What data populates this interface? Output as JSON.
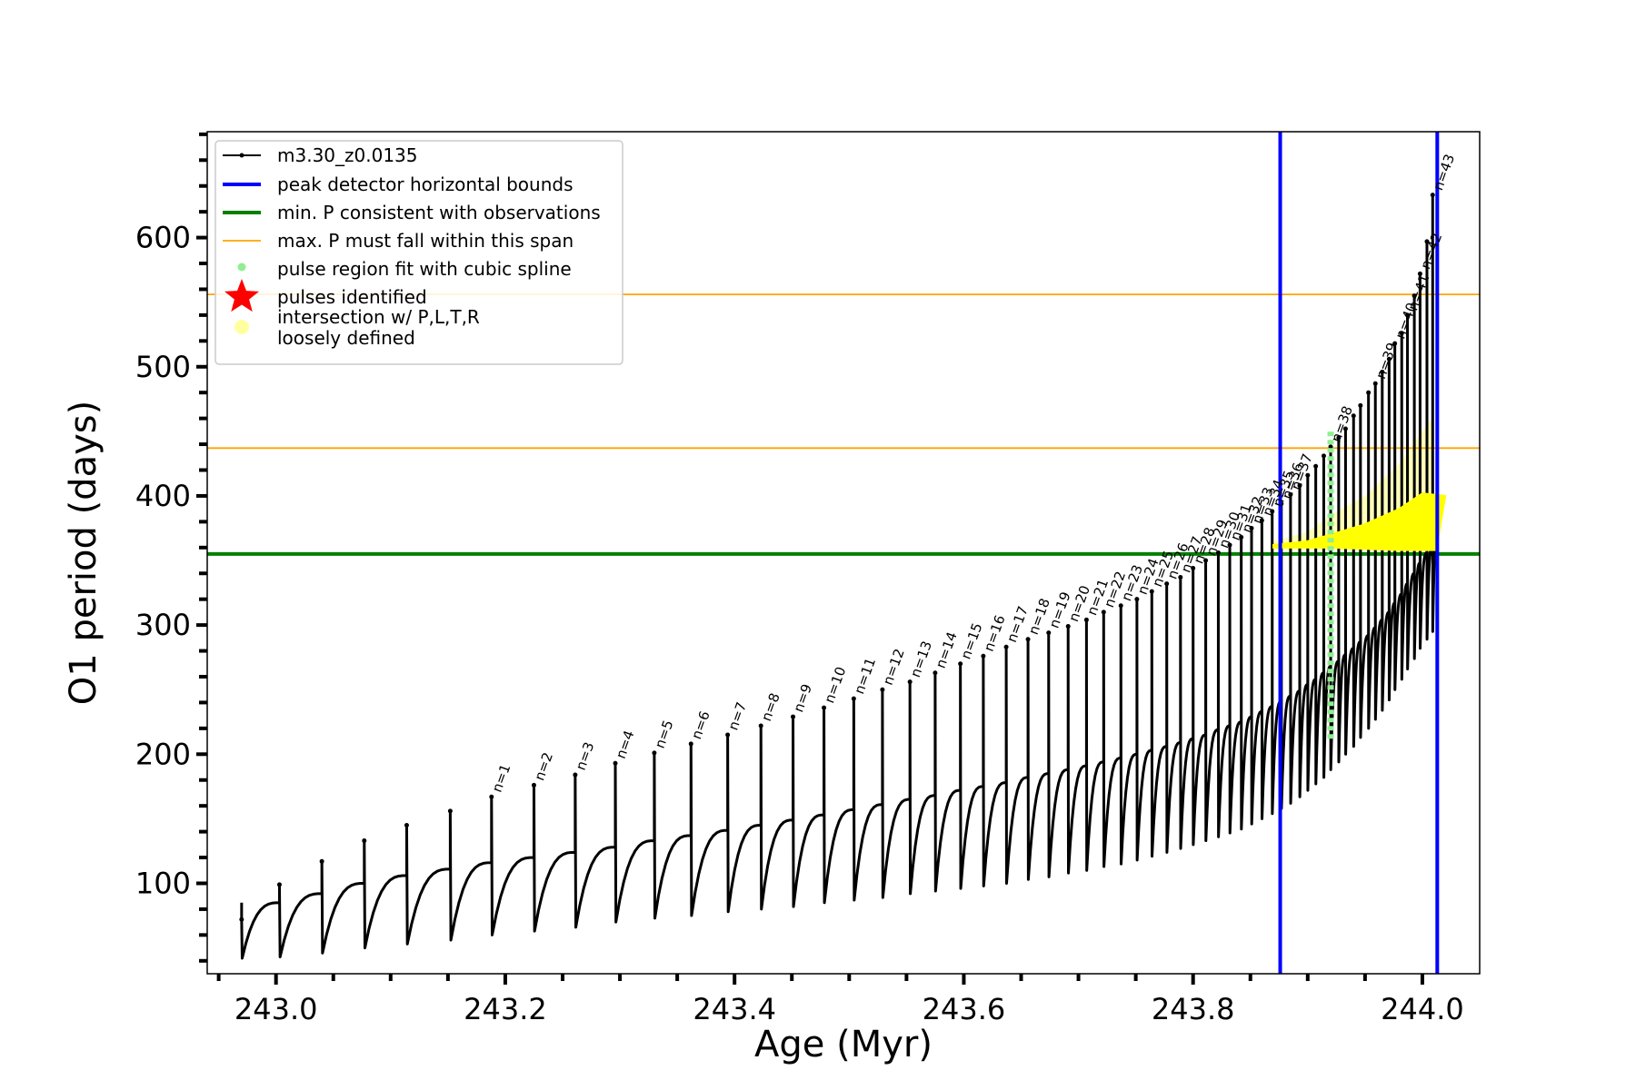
{
  "chart_data": {
    "type": "line",
    "title": "",
    "xlabel": "Age (Myr)",
    "ylabel": "O1 period (days)",
    "xlim": [
      242.94,
      244.05
    ],
    "ylim": [
      30,
      682
    ],
    "x_ticks": [
      243.0,
      243.2,
      243.4,
      243.6,
      243.8,
      244.0
    ],
    "x_tick_labels": [
      "243.0",
      "243.2",
      "243.4",
      "243.6",
      "243.8",
      "244.0"
    ],
    "y_ticks": [
      100,
      200,
      300,
      400,
      500,
      600
    ],
    "y_tick_labels": [
      "100",
      "200",
      "300",
      "400",
      "500",
      "600"
    ],
    "grid": false,
    "legend_position": "top-left",
    "legend": [
      {
        "label": "m3.30_z0.0135",
        "kind": "line-marker",
        "color": "#000000"
      },
      {
        "label": "peak detector horizontal bounds",
        "kind": "line",
        "color": "#0000ff"
      },
      {
        "label": "min. P consistent with observations",
        "kind": "line",
        "color": "#008000"
      },
      {
        "label": "max. P must fall within this span",
        "kind": "line-thin",
        "color": "#ffa500"
      },
      {
        "label": "pulse region fit with cubic spline",
        "kind": "dot",
        "color": "#90ee90"
      },
      {
        "label": "pulses identified",
        "kind": "star",
        "color": "#ff0000"
      },
      {
        "label": "intersection w/ P,L,T,R\nloosely defined",
        "kind": "circle",
        "color": "#ffffa0"
      }
    ],
    "vlines": [
      {
        "name": "peak detector horizontal bounds",
        "x": 243.876,
        "color": "#0000ff"
      },
      {
        "name": "peak detector horizontal bounds",
        "x": 244.013,
        "color": "#0000ff"
      }
    ],
    "hlines": [
      {
        "name": "min. P consistent with observations",
        "y": 355,
        "color": "#008000"
      },
      {
        "name": "max. P must fall within this span",
        "y": 556,
        "color": "#ffa500"
      },
      {
        "name": "max. P must fall within this span",
        "y": 437,
        "color": "#ffa500"
      }
    ],
    "series": [
      {
        "name": "m3.30_z0.0135",
        "color": "#000000",
        "pulse_ages": [
          242.97,
          243.003,
          243.04,
          243.077,
          243.114,
          243.152,
          243.188,
          243.225,
          243.261,
          243.296,
          243.33,
          243.362,
          243.394,
          243.423,
          243.451,
          243.478,
          243.504,
          243.529,
          243.553,
          243.575,
          243.597,
          243.617,
          243.637,
          243.656,
          243.674,
          243.691,
          243.707,
          243.722,
          243.737,
          243.751,
          243.764,
          243.777,
          243.789,
          243.8,
          243.811,
          243.822,
          243.832,
          243.842,
          243.851,
          243.86,
          243.869,
          243.877,
          243.885,
          243.893,
          243.9,
          243.907,
          243.914,
          243.92,
          243.927,
          243.933,
          243.94,
          243.946,
          243.953,
          243.959,
          243.965,
          243.971,
          243.976,
          243.982,
          243.987,
          243.993,
          243.998,
          244.004,
          244.009
        ],
        "pulse_peaks": [
          72,
          99,
          117,
          133,
          145,
          156,
          167,
          176,
          184,
          193,
          201,
          208,
          215,
          222,
          229,
          236,
          243,
          250,
          256,
          263,
          270,
          276,
          283,
          289,
          294,
          299,
          304,
          310,
          315,
          320,
          326,
          332,
          337,
          344,
          350,
          356,
          362,
          368,
          375,
          381,
          388,
          394,
          401,
          408,
          416,
          423,
          431,
          438,
          445,
          452,
          462,
          470,
          480,
          487,
          496,
          506,
          518,
          526,
          540,
          555,
          572,
          597,
          633
        ],
        "pulse_troughs": [
          42,
          43,
          46,
          50,
          53,
          56,
          60,
          63,
          66,
          70,
          73,
          75,
          78,
          80,
          82,
          85,
          87,
          89,
          92,
          94,
          96,
          98,
          100,
          103,
          105,
          108,
          110,
          113,
          115,
          118,
          121,
          124,
          127,
          130,
          133,
          136,
          139,
          142,
          146,
          150,
          154,
          158,
          162,
          167,
          172,
          177,
          182,
          188,
          194,
          200,
          206,
          213,
          220,
          227,
          234,
          242,
          250,
          258,
          266,
          274,
          282,
          289,
          295
        ],
        "plateau_values": [
          85,
          92,
          100,
          106,
          111,
          116,
          120,
          124,
          128,
          133,
          137,
          141,
          145,
          149,
          153,
          157,
          161,
          165,
          168,
          172,
          175,
          178,
          182,
          185,
          188,
          191,
          194,
          197,
          200,
          203,
          206,
          209,
          212,
          215,
          219,
          222,
          225,
          229,
          233,
          237,
          241,
          245,
          249,
          254,
          258,
          263,
          268,
          272,
          277,
          282,
          287,
          292,
          298,
          304,
          310,
          317,
          324,
          332,
          340,
          348,
          356,
          363,
          370
        ]
      }
    ],
    "pulse_labels": [
      {
        "text": "n=1",
        "x": 243.188,
        "y": 167
      },
      {
        "text": "n=2",
        "x": 243.225,
        "y": 176
      },
      {
        "text": "n=3",
        "x": 243.261,
        "y": 184
      },
      {
        "text": "n=4",
        "x": 243.296,
        "y": 193
      },
      {
        "text": "n=5",
        "x": 243.33,
        "y": 201
      },
      {
        "text": "n=6",
        "x": 243.362,
        "y": 208
      },
      {
        "text": "n=7",
        "x": 243.394,
        "y": 215
      },
      {
        "text": "n=8",
        "x": 243.423,
        "y": 222
      },
      {
        "text": "n=9",
        "x": 243.451,
        "y": 229
      },
      {
        "text": "n=10",
        "x": 243.478,
        "y": 236
      },
      {
        "text": "n=11",
        "x": 243.504,
        "y": 243
      },
      {
        "text": "n=12",
        "x": 243.529,
        "y": 250
      },
      {
        "text": "n=13",
        "x": 243.553,
        "y": 256
      },
      {
        "text": "n=14",
        "x": 243.575,
        "y": 263
      },
      {
        "text": "n=15",
        "x": 243.597,
        "y": 270
      },
      {
        "text": "n=16",
        "x": 243.617,
        "y": 276
      },
      {
        "text": "n=17",
        "x": 243.637,
        "y": 283
      },
      {
        "text": "n=18",
        "x": 243.656,
        "y": 289
      },
      {
        "text": "n=19",
        "x": 243.674,
        "y": 294
      },
      {
        "text": "n=20",
        "x": 243.691,
        "y": 299
      },
      {
        "text": "n=21",
        "x": 243.707,
        "y": 304
      },
      {
        "text": "n=22",
        "x": 243.722,
        "y": 310
      },
      {
        "text": "n=23",
        "x": 243.737,
        "y": 315
      },
      {
        "text": "n=24",
        "x": 243.751,
        "y": 320
      },
      {
        "text": "n=25",
        "x": 243.764,
        "y": 326
      },
      {
        "text": "n=26",
        "x": 243.777,
        "y": 332
      },
      {
        "text": "n=27",
        "x": 243.789,
        "y": 337
      },
      {
        "text": "n=28",
        "x": 243.8,
        "y": 344
      },
      {
        "text": "n=29",
        "x": 243.811,
        "y": 350
      },
      {
        "text": "n=30",
        "x": 243.822,
        "y": 356
      },
      {
        "text": "n=31",
        "x": 243.832,
        "y": 362
      },
      {
        "text": "n=32",
        "x": 243.842,
        "y": 368
      },
      {
        "text": "n=33",
        "x": 243.851,
        "y": 375
      },
      {
        "text": "n=34",
        "x": 243.86,
        "y": 381
      },
      {
        "text": "n=35",
        "x": 243.869,
        "y": 388
      },
      {
        "text": "n=36",
        "x": 243.877,
        "y": 394
      },
      {
        "text": "n=37",
        "x": 243.885,
        "y": 401
      },
      {
        "text": "n=38",
        "x": 243.92,
        "y": 438
      },
      {
        "text": "n=39",
        "x": 243.959,
        "y": 487
      },
      {
        "text": "n=40",
        "x": 243.976,
        "y": 518
      },
      {
        "text": "n=41",
        "x": 243.987,
        "y": 540
      },
      {
        "text": "n=42",
        "x": 243.998,
        "y": 572
      },
      {
        "text": "n=43",
        "x": 244.009,
        "y": 633
      }
    ],
    "spline_region": {
      "x": 243.92,
      "y_range": [
        212,
        452
      ],
      "color": "#90ee90"
    },
    "intersection_region": {
      "color": "#ffff00",
      "polygon": [
        [
          243.87,
          360
        ],
        [
          243.92,
          360
        ],
        [
          243.98,
          358
        ],
        [
          244.012,
          358
        ],
        [
          244.02,
          400
        ],
        [
          244.0,
          402
        ],
        [
          243.98,
          390
        ],
        [
          243.95,
          378
        ],
        [
          243.92,
          370
        ],
        [
          243.9,
          365
        ],
        [
          243.87,
          362
        ]
      ]
    },
    "loose_region": {
      "color": "#ffff66",
      "polygon": [
        [
          243.87,
          358
        ],
        [
          243.95,
          358
        ],
        [
          244.0,
          358
        ],
        [
          244.01,
          380
        ],
        [
          244.01,
          462
        ],
        [
          244.0,
          450
        ],
        [
          243.98,
          425
        ],
        [
          243.95,
          400
        ],
        [
          243.92,
          385
        ],
        [
          243.9,
          372
        ],
        [
          243.87,
          365
        ]
      ]
    }
  }
}
